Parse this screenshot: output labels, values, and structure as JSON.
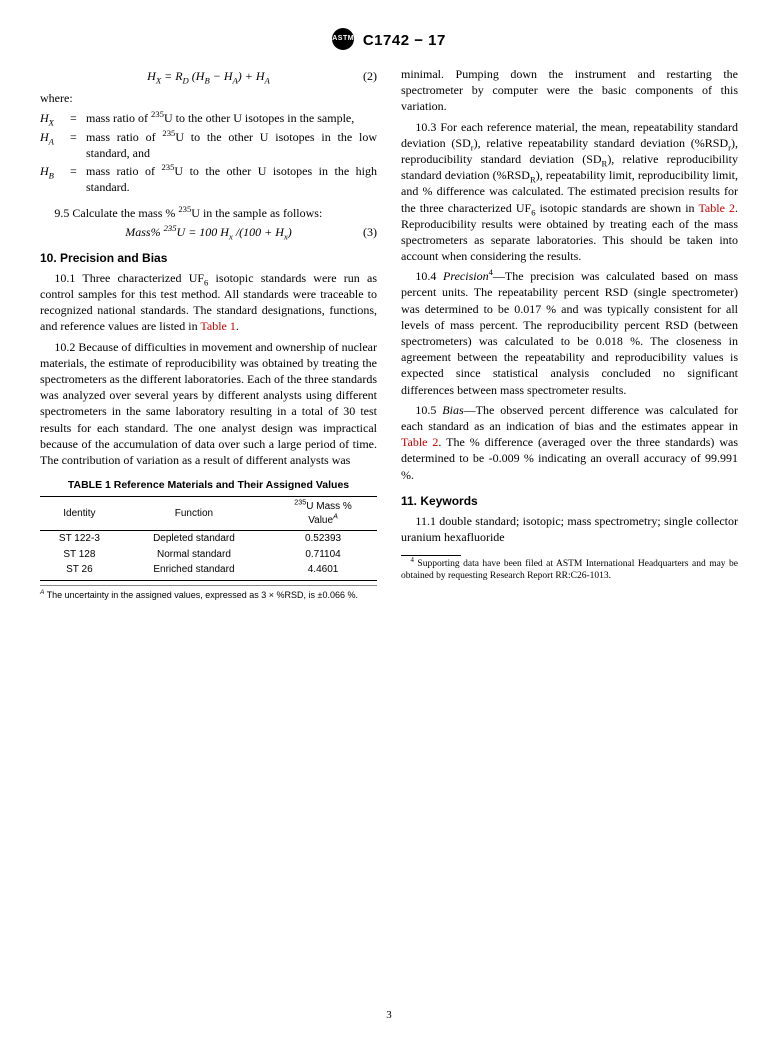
{
  "header": {
    "designation": "C1742 − 17"
  },
  "eq2": {
    "formula_html": "H<sub>X</sub> = R<sub>D</sub> (H<sub>B</sub> − H<sub>A</sub>) + H<sub>A</sub>",
    "num": "(2)"
  },
  "where_label": "where:",
  "defs": [
    {
      "sym_html": "H<sub>X</sub>",
      "eq": "=",
      "text_html": "mass ratio of <sup>235</sup>U to the other U isotopes in the sample,"
    },
    {
      "sym_html": "H<sub>A</sub>",
      "eq": "=",
      "text_html": "mass ratio of <sup>235</sup>U to the other U isotopes in the low standard, and"
    },
    {
      "sym_html": "H<sub>B</sub>",
      "eq": "=",
      "text_html": "mass ratio of <sup>235</sup>U to the other U isotopes in the high standard."
    }
  ],
  "p9_5_html": "9.5 Calculate the mass % <sup>235</sup>U in the sample as follows:",
  "eq3": {
    "formula_html": "Mass% <sup>235</sup>U = 100 H<sub>x</sub> /(100 + H<sub>x</sub>)",
    "num": "(3)"
  },
  "sec10_head": "10. Precision and Bias",
  "p10_1_html": "10.1 Three characterized UF<sub>6</sub> isotopic standards were run as control samples for this test method. All standards were traceable to recognized national standards. The standard designations, functions, and reference values are listed in <span class=\"link-red\">Table 1</span>.",
  "p10_2": "10.2 Because of difficulties in movement and ownership of nuclear materials, the estimate of reproducibility was obtained by treating the spectrometers as the different laboratories. Each of the three standards was analyzed over several years by different analysts using different spectrometers in the same laboratory resulting in a total of 30 test results for each standard. The one analyst design was impractical because of the accumulation of data over such a large period of time. The contribution of variation as a result of different analysts was",
  "table1": {
    "title": "TABLE 1 Reference Materials and Their Assigned Values",
    "col1": "Identity",
    "col2": "Function",
    "col3_html": "<sup>235</sup>U Mass %<br>Value<sup><span class=\"italic\">A</span></sup>",
    "rows": [
      {
        "c1": "ST 122-3",
        "c2": "Depleted standard",
        "c3": "0.52393"
      },
      {
        "c1": "ST 128",
        "c2": "Normal standard",
        "c3": "0.71104"
      },
      {
        "c1": "ST 26",
        "c2": "Enriched standard",
        "c3": "4.4601"
      }
    ],
    "note_html": "<sup><span class=\"italic\">A</span></sup> The uncertainty in the assigned values, expressed as 3 × %RSD, is ±0.066 %."
  },
  "p10_2_cont": "minimal. Pumping down the instrument and restarting the spectrometer by computer were the basic components of this variation.",
  "p10_3_html": "10.3 For each reference material, the mean, repeatability standard deviation (SD<sub>r</sub>), relative repeatability standard deviation (%RSD<sub>r</sub>), reproducibility standard deviation (SD<sub>R</sub>), relative reproducibility standard deviation (%RSD<sub>R</sub>), repeatability limit, reproducibility limit, and % difference was calculated. The estimated precision results for the three characterized UF<sub>6</sub> isotopic standards are shown in <span class=\"link-red\">Table 2</span>. Reproducibility results were obtained by treating each of the mass spectrometers as separate laboratories. This should be taken into account when considering the results.",
  "p10_4_html": "10.4 <span class=\"italic\">Precision</span><sup>4</sup>—The precision was calculated based on mass percent units. The repeatability percent RSD (single spectrometer) was determined to be 0.017 % and was typically consistent for all levels of mass percent. The reproducibility percent RSD (between spectrometers) was calculated to be 0.018 %. The closeness in agreement between the repeatability and reproducibility values is expected since statistical analysis concluded no significant differences between mass spectrometer results.",
  "p10_5_html": "10.5 <span class=\"italic\">Bias</span>—The observed percent difference was calculated for each standard as an indication of bias and the estimates appear in <span class=\"link-red\">Table 2</span>. The % difference (averaged over the three standards) was determined to be -0.009 % indicating an overall accuracy of 99.991 %.",
  "sec11_head": "11. Keywords",
  "p11_1": "11.1 double standard; isotopic; mass spectrometry; single collector uranium hexafluoride",
  "footnote4_html": "<sup>4</sup> Supporting data have been filed at ASTM International Headquarters and may be obtained by requesting Research Report RR:C26-1013.",
  "page_num": "3"
}
